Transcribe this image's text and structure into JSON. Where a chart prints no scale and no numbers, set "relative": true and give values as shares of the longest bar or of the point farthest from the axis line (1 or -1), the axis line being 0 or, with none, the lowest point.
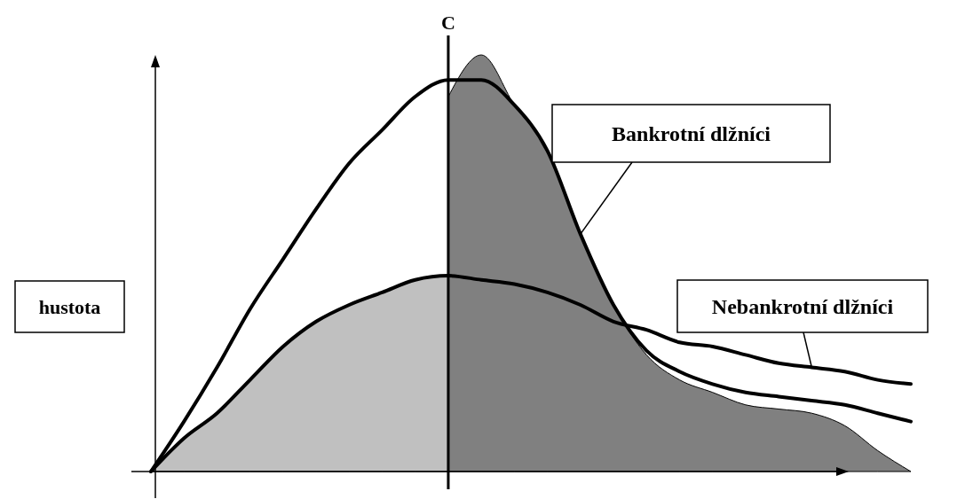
{
  "chart_data": {
    "type": "line",
    "relative": true,
    "ylabel": "hustota",
    "legend": false,
    "marker": "none",
    "line_style": "solid",
    "categories": [
      null,
      null,
      null,
      null,
      null,
      null,
      null,
      null,
      null,
      null,
      null,
      null,
      null,
      null,
      null,
      null,
      null,
      null,
      null,
      null,
      null,
      null,
      null,
      null
    ],
    "series": [
      {
        "type": "area",
        "color": "#808080",
        "values": [
          null,
          null,
          null,
          null,
          null,
          null,
          null,
          null,
          null,
          0.9,
          1.0,
          0.88,
          0.77,
          0.57,
          0.4,
          0.28,
          0.22,
          0.19,
          0.16,
          0.15,
          0.14,
          0.11,
          0.05,
          0
        ]
      },
      {
        "type": "area",
        "color": "#c0c0c0",
        "values": [
          0,
          0.08,
          0.14,
          0.22,
          0.3,
          0.36,
          0.4,
          0.43,
          0.46,
          0.47,
          null,
          null,
          null,
          null,
          null,
          null,
          null,
          null,
          null,
          null,
          null,
          null,
          null,
          null
        ]
      },
      {
        "name": "Bankrotní dlžníci",
        "color": "#000000",
        "values": [
          0,
          0.12,
          0.25,
          0.39,
          0.51,
          0.63,
          0.74,
          0.82,
          0.9,
          0.94,
          0.94,
          0.88,
          0.77,
          0.57,
          0.4,
          0.29,
          0.24,
          0.21,
          0.19,
          0.18,
          0.17,
          0.16,
          0.14,
          0.12
        ]
      },
      {
        "name": "Nebankrotní dlžníci",
        "color": "#000000",
        "values": [
          0,
          0.08,
          0.14,
          0.22,
          0.3,
          0.36,
          0.4,
          0.43,
          0.46,
          0.47,
          0.46,
          0.45,
          0.43,
          0.4,
          0.36,
          0.34,
          0.31,
          0.3,
          0.28,
          0.26,
          0.25,
          0.24,
          0.22,
          0.21
        ]
      }
    ],
    "annotations": [
      "C"
    ]
  }
}
